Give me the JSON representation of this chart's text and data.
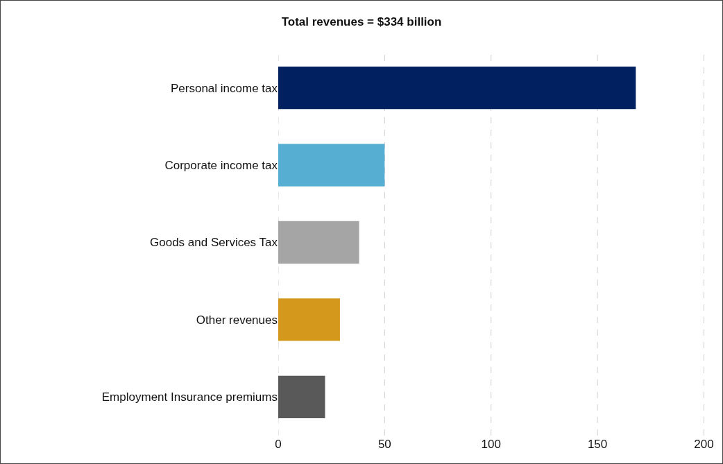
{
  "chart_data": {
    "type": "bar",
    "orientation": "horizontal",
    "title": "Total revenues = $334 billion",
    "categories": [
      "Personal income tax",
      "Corporate income tax",
      "Goods and Services Tax",
      "Other revenues",
      "Employment Insurance premiums"
    ],
    "values": [
      168,
      50,
      38,
      29,
      22
    ],
    "colors": [
      "#002060",
      "#56aed3",
      "#a5a5a5",
      "#d4991c",
      "#595959"
    ],
    "xlim": [
      0,
      208
    ],
    "xticks": [
      0,
      50,
      100,
      150,
      200
    ],
    "grid": "x"
  }
}
